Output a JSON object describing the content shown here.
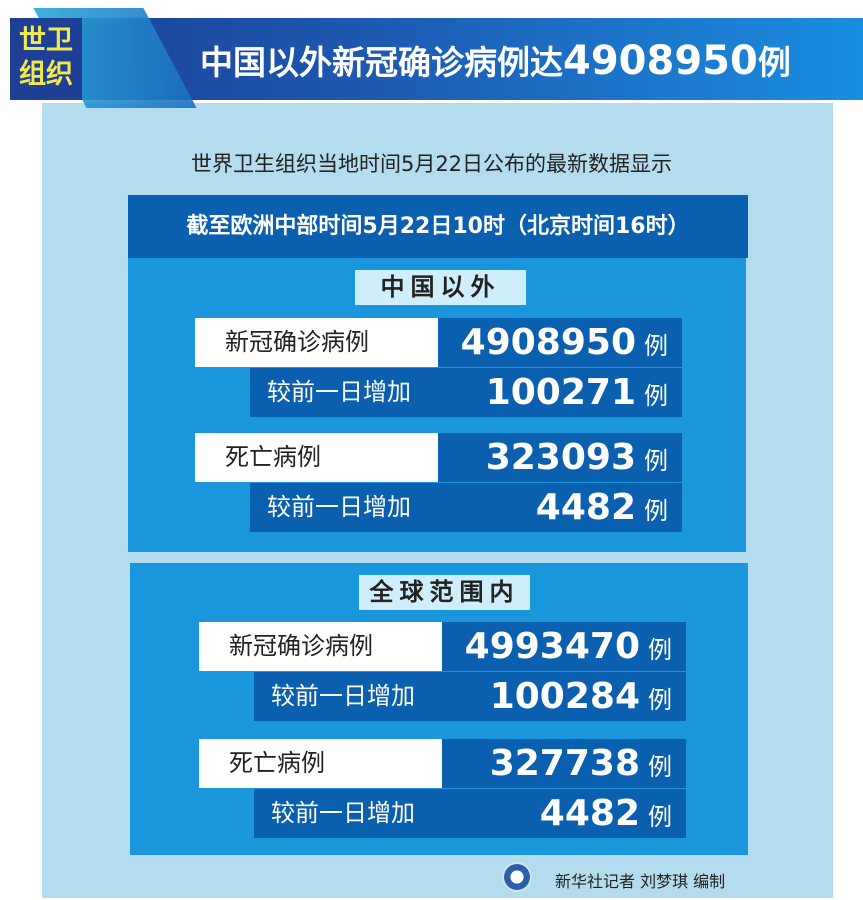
{
  "header": {
    "tag_line1": "世卫",
    "tag_line2": "组织",
    "title_prefix": "中国以外新冠确诊病例达",
    "title_number": "4908950",
    "title_suffix": "例"
  },
  "subtitle": "世界卫生组织当地时间5月22日公布的最新数据显示",
  "date_bar": "截至欧洲中部时间5月22日10时（北京时间16时）",
  "sections": [
    {
      "label": "中国以外",
      "rows": [
        {
          "label": "新冠确诊病例",
          "value": "4908950",
          "unit": "例",
          "inc_label": "较前一日增加",
          "inc_value": "100271",
          "inc_unit": "例"
        },
        {
          "label": "死亡病例",
          "value": "323093",
          "unit": "例",
          "inc_label": "较前一日增加",
          "inc_value": "4482",
          "inc_unit": "例"
        }
      ]
    },
    {
      "label": "全球范围内",
      "rows": [
        {
          "label": "新冠确诊病例",
          "value": "4993470",
          "unit": "例",
          "inc_label": "较前一日增加",
          "inc_value": "100284",
          "inc_unit": "例"
        },
        {
          "label": "死亡病例",
          "value": "327738",
          "unit": "例",
          "inc_label": "较前一日增加",
          "inc_value": "4482",
          "inc_unit": "例"
        }
      ]
    }
  ],
  "credit": "新华社记者 刘梦琪 编制",
  "colors": {
    "navy": "#0a5fae",
    "section": "#1a96dc",
    "panel": "#b3dcee",
    "tag_text": "#f2ea4c"
  }
}
